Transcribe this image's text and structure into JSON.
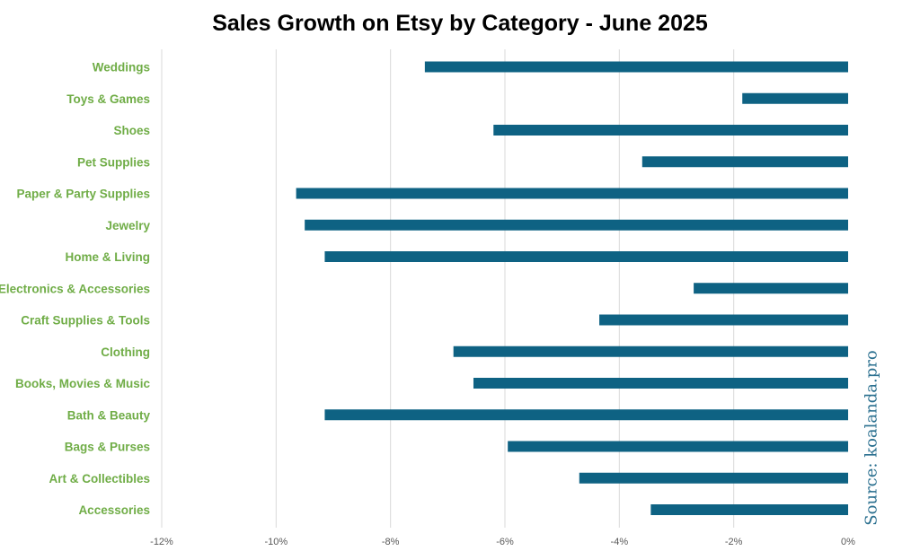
{
  "chart_data": {
    "type": "bar",
    "orientation": "horizontal",
    "title": "Sales Growth on Etsy by Category - June 2025",
    "categories": [
      "Weddings",
      "Toys & Games",
      "Shoes",
      "Pet Supplies",
      "Paper & Party Supplies",
      "Jewelry",
      "Home & Living",
      "Electronics & Accessories",
      "Craft Supplies & Tools",
      "Clothing",
      "Books, Movies & Music",
      "Bath & Beauty",
      "Bags & Purses",
      "Art & Collectibles",
      "Accessories"
    ],
    "values": [
      -7.4,
      -1.85,
      -6.2,
      -3.6,
      -9.65,
      -9.5,
      -9.15,
      -2.7,
      -4.35,
      -6.9,
      -6.55,
      -9.15,
      -5.95,
      -4.7,
      -3.45
    ],
    "unit": "%",
    "xlim": [
      -12,
      0
    ],
    "xticks": [
      -12,
      -10,
      -8,
      -6,
      -4,
      -2,
      0
    ],
    "xtick_labels": [
      "-12%",
      "-10%",
      "-8%",
      "-6%",
      "-4%",
      "-2%",
      "0%"
    ],
    "grid": "vertical",
    "bar_color": "#0e6283",
    "label_color": "#70ad47",
    "gridline_color": "#d9d9d9"
  },
  "source_note": "Source: koalanda.pro"
}
